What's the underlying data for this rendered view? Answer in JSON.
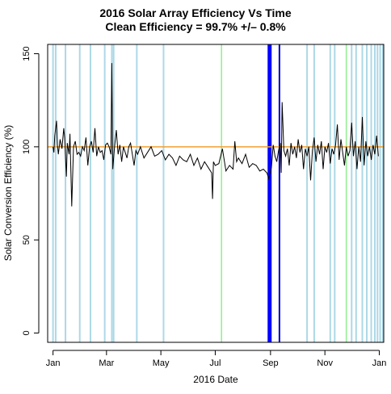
{
  "chart_data": {
    "type": "line",
    "title": "2016 Solar Array Efficiency Vs Time",
    "subtitle": "Clean Efficiency = 99.7% +/– 0.8%",
    "xlabel": "2016 Date",
    "ylabel": "Solar Conversion Efficiency (%)",
    "xlim": [
      "2015-12-26",
      "2017-01-06"
    ],
    "ylim": [
      -5,
      155
    ],
    "x_ticks": [
      {
        "date": "2016-01-01",
        "label": "Jan"
      },
      {
        "date": "2016-03-01",
        "label": "Mar"
      },
      {
        "date": "2016-05-01",
        "label": "May"
      },
      {
        "date": "2016-07-01",
        "label": "Jul"
      },
      {
        "date": "2016-09-01",
        "label": "Sep"
      },
      {
        "date": "2016-11-01",
        "label": "Nov"
      },
      {
        "date": "2017-01-01",
        "label": "Jan"
      }
    ],
    "y_ticks": [
      0,
      50,
      100,
      150
    ],
    "reference_line": {
      "y": 100,
      "color": "#f0a030"
    },
    "vertical_markers": [
      {
        "date": "2016-01-01",
        "color": "#add8e6",
        "width": 2
      },
      {
        "date": "2016-01-04",
        "color": "#add8e6",
        "width": 2
      },
      {
        "date": "2016-01-15",
        "color": "#add8e6",
        "width": 2
      },
      {
        "date": "2016-01-31",
        "color": "#add8e6",
        "width": 2
      },
      {
        "date": "2016-02-12",
        "color": "#add8e6",
        "width": 2
      },
      {
        "date": "2016-02-28",
        "color": "#add8e6",
        "width": 2
      },
      {
        "date": "2016-03-07",
        "color": "#add8e6",
        "width": 2
      },
      {
        "date": "2016-03-09",
        "color": "#add8e6",
        "width": 2
      },
      {
        "date": "2016-04-04",
        "color": "#add8e6",
        "width": 2
      },
      {
        "date": "2016-05-04",
        "color": "#add8e6",
        "width": 2
      },
      {
        "date": "2016-07-08",
        "color": "#90ee90",
        "width": 1.5
      },
      {
        "date": "2016-08-31",
        "color": "#0000ff",
        "width": 5
      },
      {
        "date": "2016-09-11",
        "color": "#0000cd",
        "width": 2
      },
      {
        "date": "2016-10-12",
        "color": "#add8e6",
        "width": 2
      },
      {
        "date": "2016-10-20",
        "color": "#add8e6",
        "width": 2
      },
      {
        "date": "2016-11-07",
        "color": "#add8e6",
        "width": 2
      },
      {
        "date": "2016-11-12",
        "color": "#add8e6",
        "width": 2
      },
      {
        "date": "2016-11-25",
        "color": "#90ee90",
        "width": 1.5
      },
      {
        "date": "2016-12-01",
        "color": "#add8e6",
        "width": 2
      },
      {
        "date": "2016-12-06",
        "color": "#add8e6",
        "width": 2
      },
      {
        "date": "2016-12-13",
        "color": "#add8e6",
        "width": 2
      },
      {
        "date": "2016-12-18",
        "color": "#add8e6",
        "width": 2
      },
      {
        "date": "2016-12-23",
        "color": "#add8e6",
        "width": 2
      },
      {
        "date": "2016-12-27",
        "color": "#add8e6",
        "width": 2
      },
      {
        "date": "2016-12-30",
        "color": "#add8e6",
        "width": 2
      },
      {
        "date": "2017-01-02",
        "color": "#add8e6",
        "width": 2
      },
      {
        "date": "2017-01-05",
        "color": "#add8e6",
        "width": 2
      }
    ],
    "series": [
      {
        "color": "#000000",
        "x": [
          "2016-01-01",
          "2016-01-02",
          "2016-01-03",
          "2016-01-05",
          "2016-01-06",
          "2016-01-07",
          "2016-01-09",
          "2016-01-11",
          "2016-01-13",
          "2016-01-14",
          "2016-01-16",
          "2016-01-17",
          "2016-01-19",
          "2016-01-20",
          "2016-01-22",
          "2016-01-24",
          "2016-01-26",
          "2016-01-28",
          "2016-01-30",
          "2016-02-01",
          "2016-02-03",
          "2016-02-05",
          "2016-02-07",
          "2016-02-09",
          "2016-02-11",
          "2016-02-13",
          "2016-02-15",
          "2016-02-17",
          "2016-02-19",
          "2016-02-21",
          "2016-02-23",
          "2016-02-25",
          "2016-02-27",
          "2016-02-29",
          "2016-03-02",
          "2016-03-04",
          "2016-03-06",
          "2016-03-07",
          "2016-03-08",
          "2016-03-10",
          "2016-03-12",
          "2016-03-14",
          "2016-03-16",
          "2016-03-18",
          "2016-03-20",
          "2016-03-22",
          "2016-03-24",
          "2016-03-26",
          "2016-03-28",
          "2016-03-30",
          "2016-04-01",
          "2016-04-03",
          "2016-04-05",
          "2016-04-08",
          "2016-04-12",
          "2016-04-16",
          "2016-04-20",
          "2016-04-24",
          "2016-04-28",
          "2016-05-02",
          "2016-05-06",
          "2016-05-10",
          "2016-05-14",
          "2016-05-18",
          "2016-05-22",
          "2016-05-26",
          "2016-05-30",
          "2016-06-03",
          "2016-06-07",
          "2016-06-11",
          "2016-06-15",
          "2016-06-19",
          "2016-06-23",
          "2016-06-27",
          "2016-06-28",
          "2016-06-29",
          "2016-07-01",
          "2016-07-05",
          "2016-07-09",
          "2016-07-13",
          "2016-07-17",
          "2016-07-21",
          "2016-07-23",
          "2016-07-25",
          "2016-07-27",
          "2016-07-31",
          "2016-08-04",
          "2016-08-08",
          "2016-08-12",
          "2016-08-16",
          "2016-08-20",
          "2016-08-24",
          "2016-08-28",
          "2016-08-30",
          "2016-09-02",
          "2016-09-04",
          "2016-09-06",
          "2016-09-08",
          "2016-09-10",
          "2016-09-12",
          "2016-09-13",
          "2016-09-14",
          "2016-09-16",
          "2016-09-18",
          "2016-09-20",
          "2016-09-22",
          "2016-09-24",
          "2016-09-26",
          "2016-09-28",
          "2016-09-30",
          "2016-10-02",
          "2016-10-04",
          "2016-10-06",
          "2016-10-08",
          "2016-10-10",
          "2016-10-12",
          "2016-10-14",
          "2016-10-16",
          "2016-10-18",
          "2016-10-20",
          "2016-10-22",
          "2016-10-24",
          "2016-10-26",
          "2016-10-28",
          "2016-10-30",
          "2016-11-01",
          "2016-11-03",
          "2016-11-05",
          "2016-11-07",
          "2016-11-09",
          "2016-11-11",
          "2016-11-13",
          "2016-11-15",
          "2016-11-17",
          "2016-11-19",
          "2016-11-21",
          "2016-11-23",
          "2016-11-25",
          "2016-11-27",
          "2016-11-29",
          "2016-12-01",
          "2016-12-03",
          "2016-12-05",
          "2016-12-07",
          "2016-12-09",
          "2016-12-11",
          "2016-12-13",
          "2016-12-15",
          "2016-12-17",
          "2016-12-19",
          "2016-12-21",
          "2016-12-23",
          "2016-12-25",
          "2016-12-27",
          "2016-12-29",
          "2016-12-31"
        ],
        "y": [
          100,
          97,
          106,
          114,
          101,
          96,
          104,
          99,
          110,
          105,
          84,
          102,
          96,
          107,
          68,
          100,
          103,
          96,
          97,
          95,
          100,
          98,
          105,
          90,
          100,
          103,
          97,
          110,
          95,
          100,
          97,
          98,
          93,
          101,
          102,
          100,
          96,
          145,
          88,
          100,
          109,
          96,
          101,
          92,
          100,
          97,
          94,
          100,
          102,
          96,
          90,
          98,
          96,
          100,
          94,
          97,
          100,
          95,
          96,
          98,
          93,
          96,
          94,
          90,
          95,
          93,
          92,
          96,
          90,
          94,
          88,
          92,
          89,
          86,
          72,
          92,
          90,
          91,
          99,
          87,
          90,
          88,
          103,
          92,
          94,
          91,
          96,
          89,
          91,
          90,
          87,
          88,
          86,
          83,
          89,
          101,
          95,
          92,
          98,
          102,
          86,
          124,
          98,
          95,
          99,
          90,
          102,
          96,
          100,
          94,
          104,
          97,
          101,
          88,
          99,
          95,
          100,
          82,
          98,
          105,
          92,
          101,
          96,
          103,
          88,
          100,
          97,
          102,
          91,
          99,
          96,
          101,
          112,
          93,
          104,
          97,
          90,
          100,
          95,
          98,
          113,
          95,
          103,
          88,
          100,
          92,
          116,
          90,
          103,
          95,
          100,
          93,
          101,
          96,
          106,
          95
        ]
      }
    ],
    "grid": false
  }
}
